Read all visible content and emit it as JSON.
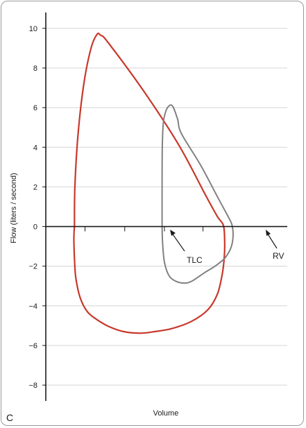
{
  "chart_data": {
    "type": "line",
    "panel_label": "C",
    "xlabel": "Volume",
    "ylabel": "Flow (liters / second)",
    "ylim": [
      -8.8,
      10.8
    ],
    "xlim": [
      0,
      10
    ],
    "y_ticks": [
      10,
      8,
      6,
      4,
      2,
      0,
      -2,
      -4,
      -6,
      -8
    ],
    "y_tick_labels": [
      "10",
      "8",
      "6",
      "4",
      "2",
      "0",
      "−2",
      "−4",
      "−6",
      "−8"
    ],
    "grid": "horizontal",
    "annotations": [
      "TLC",
      "RV"
    ],
    "series": [
      {
        "color": "#c8372a",
        "x": [
          1.16,
          1.18,
          1.3,
          1.55,
          1.85,
          2.1,
          2.25,
          2.55,
          4.0,
          5.5,
          6.6,
          7.1,
          7.35,
          7.4,
          7.38,
          7.3,
          7.1,
          6.7,
          6.0,
          5.2,
          4.5,
          3.9,
          3.2,
          2.6,
          2.1,
          1.7,
          1.4,
          1.22,
          1.16,
          1.14,
          1.14,
          1.16
        ],
        "y": [
          0.0,
          2.0,
          4.5,
          7.2,
          9.0,
          9.7,
          9.65,
          9.3,
          6.9,
          4.1,
          1.6,
          0.5,
          0.05,
          -0.8,
          -1.6,
          -2.4,
          -3.4,
          -4.2,
          -4.8,
          -5.15,
          -5.3,
          -5.38,
          -5.3,
          -5.05,
          -4.7,
          -4.3,
          -3.6,
          -2.6,
          -1.6,
          -0.9,
          -0.4,
          0.0
        ]
      },
      {
        "color": "#808080",
        "x": [
          4.8,
          4.8,
          4.81,
          4.85,
          4.95,
          5.1,
          5.25,
          5.45,
          5.6,
          6.4,
          7.1,
          7.5,
          7.7,
          7.75,
          7.65,
          7.4,
          7.0,
          6.6,
          6.3,
          6.05,
          5.8,
          5.45,
          5.1,
          4.9,
          4.82,
          4.8
        ],
        "y": [
          0.0,
          2.0,
          4.0,
          5.2,
          5.8,
          6.1,
          6.05,
          5.4,
          4.7,
          3.1,
          1.5,
          0.6,
          0.1,
          -0.5,
          -1.1,
          -1.6,
          -2.0,
          -2.3,
          -2.55,
          -2.75,
          -2.85,
          -2.8,
          -2.5,
          -1.8,
          -0.8,
          0.0
        ]
      }
    ]
  }
}
